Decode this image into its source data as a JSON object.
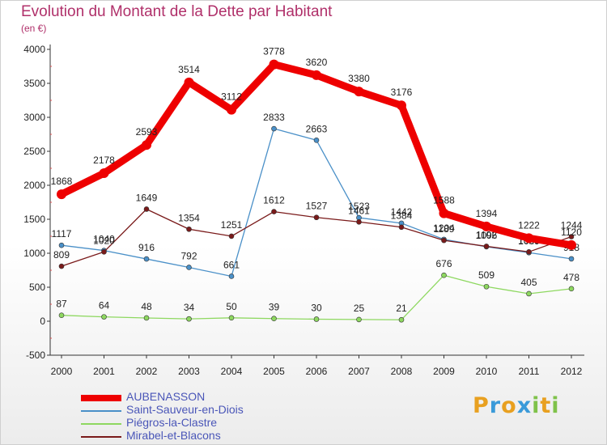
{
  "title": "Evolution du Montant de la Dette par Habitant",
  "subtitle": "(en €)",
  "logo": {
    "letters": [
      "P",
      "r",
      "o",
      "x",
      "i",
      "t",
      "i"
    ],
    "colors": [
      "#e8a020",
      "#3a9ad9",
      "#e8a020",
      "#3a9ad9",
      "#7fc24a",
      "#e8a020",
      "#7fc24a"
    ]
  },
  "chart_data": {
    "type": "line",
    "x": [
      "2000",
      "2001",
      "2002",
      "2003",
      "2004",
      "2005",
      "2006",
      "2007",
      "2008",
      "2009",
      "2010",
      "2011",
      "2012"
    ],
    "ylim": [
      -500,
      4000
    ],
    "yticks": [
      "-500",
      "0",
      "500",
      "1000",
      "1500",
      "2000",
      "2500",
      "3000",
      "3500",
      "4000"
    ],
    "ytick_values": [
      -500,
      0,
      500,
      1000,
      1500,
      2000,
      2500,
      3000,
      3500,
      4000
    ],
    "grid": false,
    "legend_position": "bottom-left",
    "series": [
      {
        "name": "Saint-Sauveur-en-Diois",
        "color": "#4a90c8",
        "values": [
          1117,
          1040,
          916,
          792,
          661,
          2833,
          2663,
          1523,
          1442,
          1204,
          1096,
          1009,
          918
        ],
        "labels": [
          "1117",
          "1040",
          "916",
          "792",
          "661",
          "2833",
          "2663",
          "1523",
          "1442",
          "1204",
          "1096",
          "1009",
          "918"
        ],
        "gaps_after": [
          4
        ]
      },
      {
        "name": "Piégros-la-Clastre",
        "color": "#8ed860",
        "values": [
          87,
          64,
          48,
          34,
          50,
          39,
          30,
          25,
          21,
          676,
          509,
          405,
          478
        ],
        "labels": [
          "87",
          "64",
          "48",
          "34",
          "50",
          "39",
          "30",
          "25",
          "21",
          "676",
          "509",
          "405",
          "478"
        ],
        "gaps_after": []
      },
      {
        "name": "Mirabel-et-Blacons",
        "color": "#7a1a1a",
        "values": [
          809,
          1020,
          1649,
          1354,
          1251,
          1612,
          1527,
          1461,
          1384,
          1189,
          1102,
          1020,
          1244
        ],
        "labels": [
          "809",
          "1020",
          "1649",
          "1354",
          "1251",
          "1612",
          "1527",
          "1461",
          "1384",
          "1189",
          "1102",
          "1020",
          "1244"
        ],
        "gaps_after": []
      },
      {
        "name": "AUBENASSON",
        "color": "#ee0000",
        "values": [
          1868,
          2178,
          2593,
          3514,
          3112,
          3778,
          3620,
          3380,
          3176,
          1588,
          1394,
          1222,
          1120
        ],
        "labels": [
          "1868",
          "2178",
          "2593",
          "3514",
          "3112",
          "3778",
          "3620",
          "3380",
          "3176",
          "1588",
          "1394",
          "1222",
          "1120"
        ],
        "gaps_after": []
      }
    ],
    "legend": [
      {
        "name": "AUBENASSON",
        "color": "#ee0000",
        "thickness": 8
      },
      {
        "name": "Saint-Sauveur-en-Diois",
        "color": "#4a90c8",
        "thickness": 2
      },
      {
        "name": "Piégros-la-Clastre",
        "color": "#8ed860",
        "thickness": 2
      },
      {
        "name": "Mirabel-et-Blacons",
        "color": "#7a1a1a",
        "thickness": 2
      }
    ]
  }
}
